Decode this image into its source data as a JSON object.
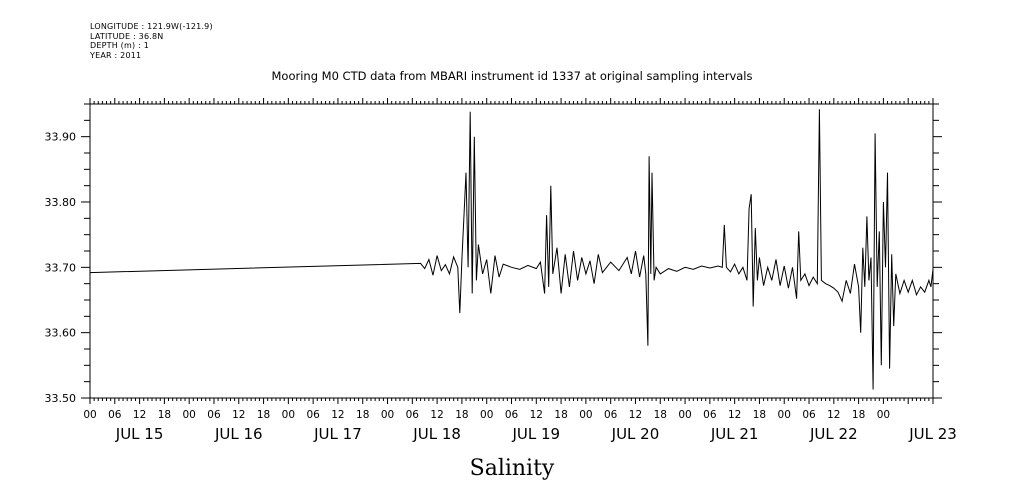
{
  "metadata": {
    "longitude": "LONGITUDE : 121.9W(-121.9)",
    "latitude": "LATITUDE : 36.8N",
    "depth": "DEPTH (m) : 1",
    "year": "YEAR : 2011"
  },
  "chart_data": {
    "type": "line",
    "title": "Mooring M0 CTD data from MBARI instrument id 1337 at original sampling intervals",
    "xlabel": "Salinity",
    "ylabel": "",
    "x_range_hours": [
      0,
      204
    ],
    "ylim": [
      33.5,
      33.95
    ],
    "y_ticks": [
      "33.50",
      "33.60",
      "33.70",
      "33.80",
      "33.90"
    ],
    "x_hour_ticks": [
      "00",
      "06",
      "12",
      "18",
      "00",
      "06",
      "12",
      "18",
      "00",
      "06",
      "12",
      "18",
      "00",
      "06",
      "12",
      "18",
      "00",
      "06",
      "12",
      "18",
      "00",
      "06",
      "12",
      "18",
      "00",
      "06",
      "12",
      "18",
      "00",
      "06",
      "12",
      "18",
      "00"
    ],
    "day_labels": [
      "JUL 15",
      "JUL 16",
      "JUL 17",
      "JUL 18",
      "JUL 19",
      "JUL 20",
      "JUL 21",
      "JUL 22",
      "JUL 23"
    ],
    "grid": false,
    "legend": "none",
    "line_color": "#000000",
    "series": [
      {
        "points": [
          [
            0,
            33.692
          ],
          [
            80,
            33.706
          ],
          [
            81,
            33.698
          ],
          [
            82,
            33.712
          ],
          [
            83,
            33.688
          ],
          [
            84,
            33.718
          ],
          [
            85,
            33.695
          ],
          [
            86,
            33.704
          ],
          [
            87,
            33.69
          ],
          [
            88,
            33.716
          ],
          [
            89,
            33.7
          ],
          [
            89.5,
            33.63
          ],
          [
            90,
            33.712
          ],
          [
            90.5,
            33.78
          ],
          [
            91,
            33.845
          ],
          [
            91.5,
            33.7
          ],
          [
            92,
            33.938
          ],
          [
            92.5,
            33.66
          ],
          [
            93,
            33.9
          ],
          [
            93.5,
            33.68
          ],
          [
            94,
            33.735
          ],
          [
            95,
            33.69
          ],
          [
            96,
            33.712
          ],
          [
            97,
            33.66
          ],
          [
            98,
            33.718
          ],
          [
            99,
            33.685
          ],
          [
            100,
            33.705
          ],
          [
            102,
            33.7
          ],
          [
            104,
            33.697
          ],
          [
            106,
            33.703
          ],
          [
            108,
            33.698
          ],
          [
            109,
            33.708
          ],
          [
            110,
            33.66
          ],
          [
            110.5,
            33.78
          ],
          [
            111,
            33.67
          ],
          [
            111.5,
            33.825
          ],
          [
            112,
            33.69
          ],
          [
            113,
            33.73
          ],
          [
            114,
            33.66
          ],
          [
            115,
            33.72
          ],
          [
            116,
            33.67
          ],
          [
            117,
            33.725
          ],
          [
            118,
            33.68
          ],
          [
            119,
            33.715
          ],
          [
            120,
            33.69
          ],
          [
            121,
            33.71
          ],
          [
            122,
            33.675
          ],
          [
            123,
            33.72
          ],
          [
            124,
            33.692
          ],
          [
            126,
            33.708
          ],
          [
            128,
            33.695
          ],
          [
            130,
            33.715
          ],
          [
            131,
            33.69
          ],
          [
            132,
            33.725
          ],
          [
            133,
            33.685
          ],
          [
            134,
            33.718
          ],
          [
            134.5,
            33.69
          ],
          [
            135,
            33.58
          ],
          [
            135.3,
            33.87
          ],
          [
            135.7,
            33.69
          ],
          [
            136,
            33.845
          ],
          [
            136.5,
            33.68
          ],
          [
            137,
            33.7
          ],
          [
            138,
            33.69
          ],
          [
            140,
            33.698
          ],
          [
            142,
            33.694
          ],
          [
            144,
            33.7
          ],
          [
            146,
            33.697
          ],
          [
            148,
            33.702
          ],
          [
            150,
            33.699
          ],
          [
            152,
            33.702
          ],
          [
            153,
            33.7
          ],
          [
            153.5,
            33.765
          ],
          [
            154,
            33.7
          ],
          [
            155,
            33.693
          ],
          [
            156,
            33.705
          ],
          [
            157,
            33.69
          ],
          [
            158,
            33.7
          ],
          [
            159,
            33.68
          ],
          [
            159.5,
            33.79
          ],
          [
            160,
            33.812
          ],
          [
            160.5,
            33.64
          ],
          [
            161,
            33.76
          ],
          [
            161.5,
            33.68
          ],
          [
            162,
            33.715
          ],
          [
            163,
            33.672
          ],
          [
            164,
            33.7
          ],
          [
            165,
            33.68
          ],
          [
            166,
            33.712
          ],
          [
            167,
            33.672
          ],
          [
            168,
            33.702
          ],
          [
            169,
            33.668
          ],
          [
            170,
            33.7
          ],
          [
            171,
            33.652
          ],
          [
            171.5,
            33.755
          ],
          [
            172,
            33.68
          ],
          [
            173,
            33.69
          ],
          [
            174,
            33.672
          ],
          [
            175,
            33.685
          ],
          [
            176,
            33.675
          ],
          [
            176.5,
            33.942
          ],
          [
            177,
            33.68
          ],
          [
            178,
            33.675
          ],
          [
            179,
            33.672
          ],
          [
            180,
            33.668
          ],
          [
            181,
            33.662
          ],
          [
            182,
            33.648
          ],
          [
            183,
            33.68
          ],
          [
            184,
            33.66
          ],
          [
            185,
            33.705
          ],
          [
            186,
            33.67
          ],
          [
            186.5,
            33.6
          ],
          [
            187,
            33.73
          ],
          [
            187.5,
            33.67
          ],
          [
            188,
            33.778
          ],
          [
            188.5,
            33.68
          ],
          [
            189,
            33.715
          ],
          [
            189.5,
            33.513
          ],
          [
            190,
            33.905
          ],
          [
            190.5,
            33.67
          ],
          [
            191,
            33.755
          ],
          [
            191.5,
            33.55
          ],
          [
            192,
            33.8
          ],
          [
            192.5,
            33.7
          ],
          [
            193,
            33.845
          ],
          [
            193.5,
            33.545
          ],
          [
            194,
            33.72
          ],
          [
            194.5,
            33.61
          ],
          [
            195,
            33.69
          ],
          [
            196,
            33.66
          ],
          [
            197,
            33.68
          ],
          [
            198,
            33.662
          ],
          [
            199,
            33.68
          ],
          [
            200,
            33.658
          ],
          [
            201,
            33.67
          ],
          [
            202,
            33.662
          ],
          [
            203,
            33.68
          ],
          [
            203.5,
            33.67
          ],
          [
            204,
            33.697
          ]
        ]
      }
    ]
  }
}
